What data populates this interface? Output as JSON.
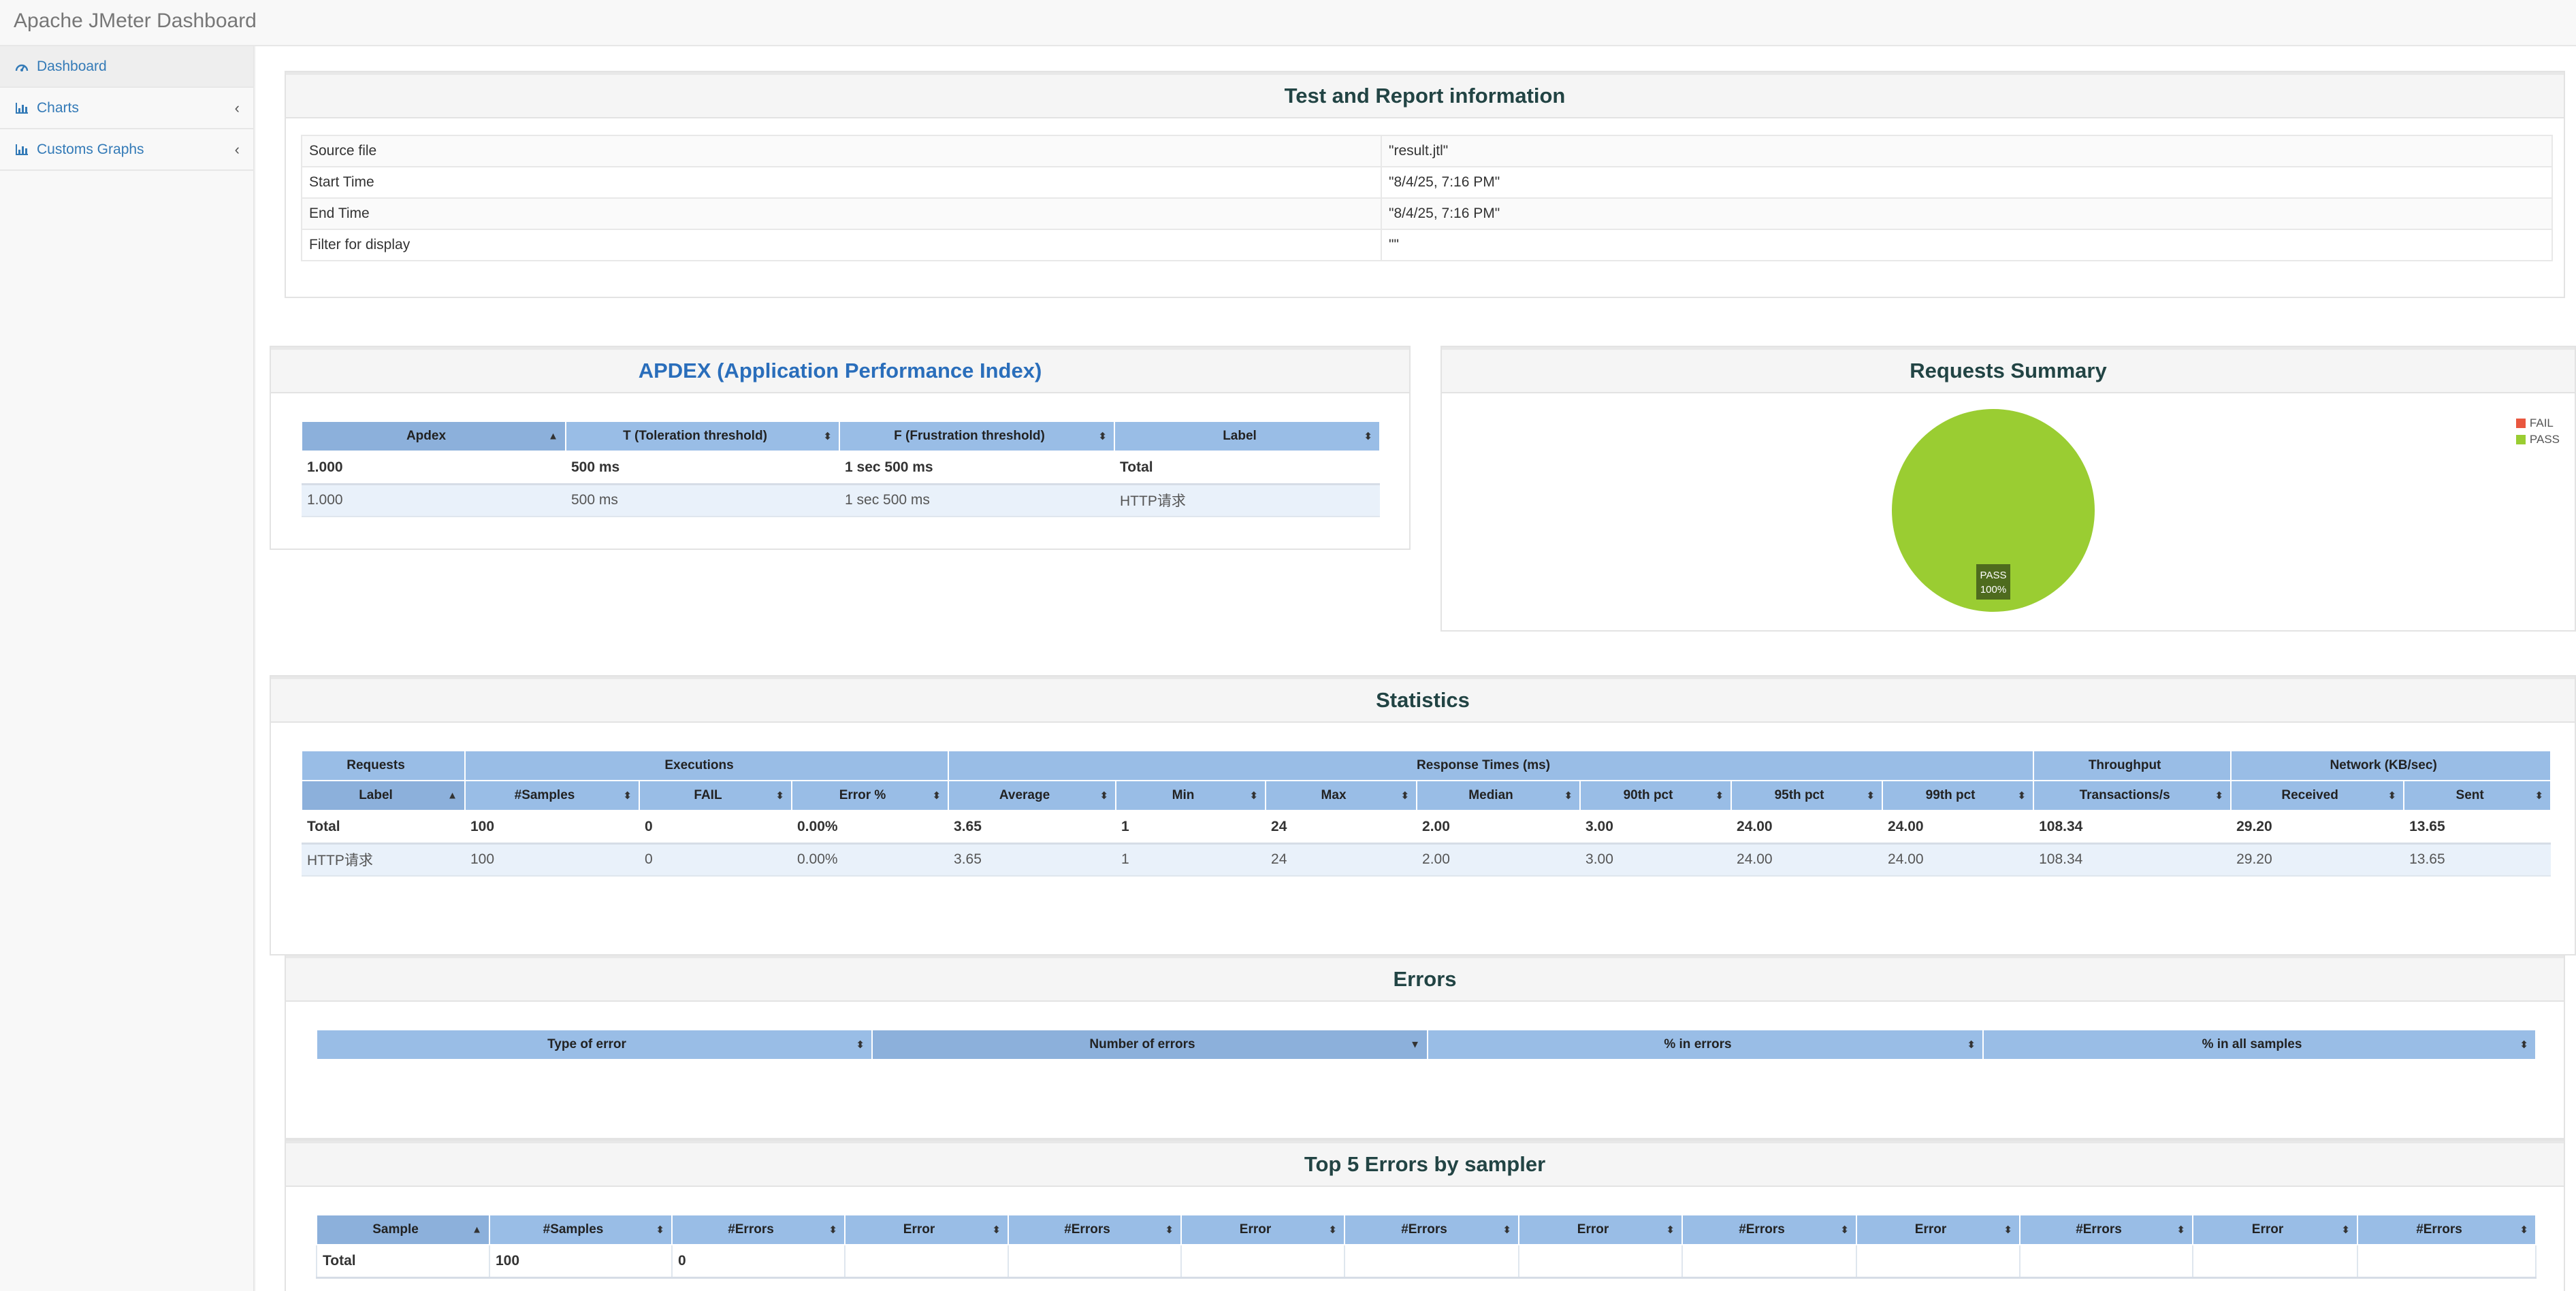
{
  "app": {
    "title": "Apache JMeter Dashboard"
  },
  "sidebar": {
    "items": [
      {
        "label": "Dashboard",
        "icon": "dashboard-icon",
        "active": true
      },
      {
        "label": "Charts",
        "icon": "bar-chart-icon",
        "active": false
      },
      {
        "label": "Customs Graphs",
        "icon": "bar-chart-icon",
        "active": false
      }
    ]
  },
  "test_info": {
    "title": "Test and Report information",
    "rows": [
      {
        "label": "Source file",
        "value": "\"result.jtl\""
      },
      {
        "label": "Start Time",
        "value": "\"8/4/25, 7:16 PM\""
      },
      {
        "label": "End Time",
        "value": "\"8/4/25, 7:16 PM\""
      },
      {
        "label": "Filter for display",
        "value": "\"\""
      }
    ]
  },
  "apdex": {
    "title": "APDEX (Application Performance Index)",
    "headers": [
      "Apdex",
      "T (Toleration threshold)",
      "F (Frustration threshold)",
      "Label"
    ],
    "rows": [
      [
        "1.000",
        "500 ms",
        "1 sec 500 ms",
        "Total"
      ],
      [
        "1.000",
        "500 ms",
        "1 sec 500 ms",
        "HTTP请求"
      ]
    ]
  },
  "requests_summary": {
    "title": "Requests Summary",
    "legend": [
      {
        "name": "FAIL",
        "color": "#e9573f"
      },
      {
        "name": "PASS",
        "color": "#9acd32"
      }
    ],
    "slice_label": "PASS",
    "slice_pct": "100%"
  },
  "chart_data": {
    "type": "pie",
    "categories": [
      "FAIL",
      "PASS"
    ],
    "values": [
      0,
      100
    ],
    "title": "Requests Summary",
    "legend": "top-right"
  },
  "statistics": {
    "title": "Statistics",
    "groups": [
      "Requests",
      "Executions",
      "Response Times (ms)",
      "Throughput",
      "Network (KB/sec)"
    ],
    "headers": [
      "Label",
      "#Samples",
      "FAIL",
      "Error %",
      "Average",
      "Min",
      "Max",
      "Median",
      "90th pct",
      "95th pct",
      "99th pct",
      "Transactions/s",
      "Received",
      "Sent"
    ],
    "rows": [
      [
        "Total",
        "100",
        "0",
        "0.00%",
        "3.65",
        "1",
        "24",
        "2.00",
        "3.00",
        "24.00",
        "24.00",
        "108.34",
        "29.20",
        "13.65"
      ],
      [
        "HTTP请求",
        "100",
        "0",
        "0.00%",
        "3.65",
        "1",
        "24",
        "2.00",
        "3.00",
        "24.00",
        "24.00",
        "108.34",
        "29.20",
        "13.65"
      ]
    ]
  },
  "errors": {
    "title": "Errors",
    "headers": [
      "Type of error",
      "Number of errors",
      "% in errors",
      "% in all samples"
    ]
  },
  "top5": {
    "title": "Top 5 Errors by sampler",
    "headers": [
      "Sample",
      "#Samples",
      "#Errors",
      "Error",
      "#Errors",
      "Error",
      "#Errors",
      "Error",
      "#Errors",
      "Error",
      "#Errors",
      "Error",
      "#Errors"
    ],
    "rows": [
      [
        "Total",
        "100",
        "0",
        "",
        "",
        "",
        "",
        "",
        "",
        "",
        "",
        "",
        ""
      ]
    ]
  }
}
